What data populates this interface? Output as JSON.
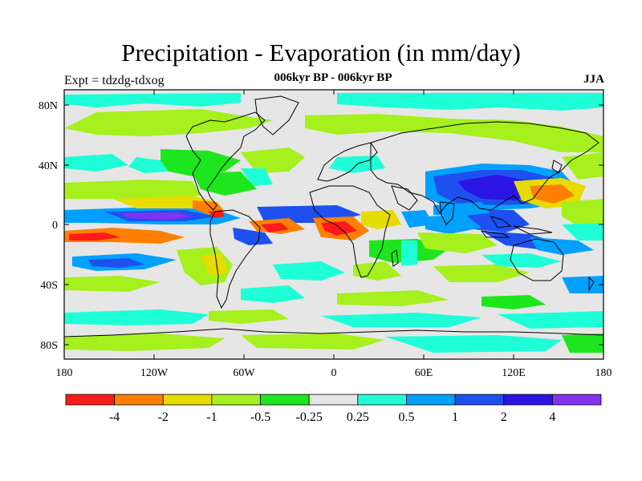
{
  "title": "Precipitation - Evaporation (in mm/day)",
  "subtitle": "006kyr BP - 006kyr BP",
  "left_label": "Expt = tdzdg-tdxog",
  "right_label": "JJA",
  "lat_labels": [
    "80N",
    "40N",
    "0",
    "40S",
    "80S"
  ],
  "lon_labels": [
    "180",
    "120W",
    "60W",
    "0",
    "60E",
    "120E",
    "180"
  ],
  "colorbar": {
    "colors": [
      "#ff1a1a",
      "#ff8000",
      "#e6dc00",
      "#a6f01e",
      "#1ee61e",
      "#e6e6e6",
      "#1effd8",
      "#00a0ff",
      "#1e50f0",
      "#2a14e6",
      "#8232f0"
    ],
    "labels": [
      "-4",
      "-2",
      "-1",
      "-0.5",
      "-0.25",
      "0.25",
      "0.5",
      "1",
      "2",
      "4"
    ]
  },
  "map_colors": {
    "background": "#e6e6e6",
    "red": "#ff1a1a",
    "orange": "#ff8000",
    "yellow": "#e6dc00",
    "lightgreen": "#a6f01e",
    "green": "#1ee61e",
    "cyan": "#1effd8",
    "skyblue": "#00a0ff",
    "blue": "#1e50f0",
    "darkblue": "#2a14e6",
    "purple": "#8232f0",
    "coast": "#000000"
  }
}
